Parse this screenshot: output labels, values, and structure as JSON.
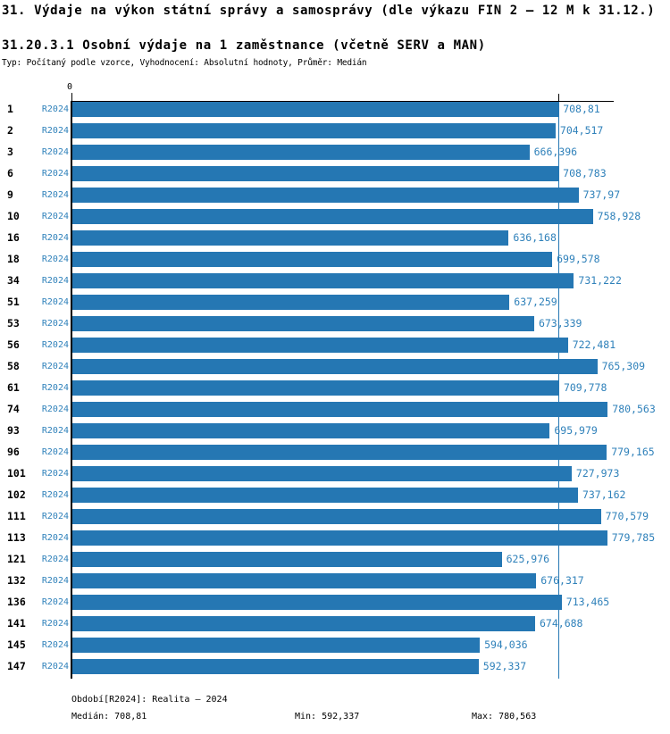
{
  "title": "31. Výdaje na výkon státní správy a samosprávy (dle výkazu FIN 2 – 12 M k 31.12.)",
  "subtitle": "31.20.3.1 Osobní výdaje na 1 zaměstnance (včetně SERV a MAN)",
  "meta_line": "Typ: Počítaný podle vzorce, Vyhodnocení: Absolutní hodnoty, Průměr: Medián",
  "colors": {
    "bar": "#2577b3",
    "blue_text": "#2f81ba",
    "axis": "#000000",
    "median_line": "#2577b3"
  },
  "chart_data": {
    "type": "bar",
    "orientation": "horizontal",
    "title": "31.20.3.1 Osobní výdaje na 1 zaměstnance (včetně SERV a MAN)",
    "series_label": "R2024",
    "axis_origin_label": "0",
    "xlim": [
      0,
      788
    ],
    "grid": false,
    "median": 708.81,
    "rows": [
      {
        "id": "1",
        "period": "R2024",
        "value": 708.81,
        "label": "708,81"
      },
      {
        "id": "2",
        "period": "R2024",
        "value": 704.517,
        "label": "704,517"
      },
      {
        "id": "3",
        "period": "R2024",
        "value": 666.396,
        "label": "666,396"
      },
      {
        "id": "6",
        "period": "R2024",
        "value": 708.783,
        "label": "708,783"
      },
      {
        "id": "9",
        "period": "R2024",
        "value": 737.97,
        "label": "737,97"
      },
      {
        "id": "10",
        "period": "R2024",
        "value": 758.928,
        "label": "758,928"
      },
      {
        "id": "16",
        "period": "R2024",
        "value": 636.168,
        "label": "636,168"
      },
      {
        "id": "18",
        "period": "R2024",
        "value": 699.578,
        "label": "699,578"
      },
      {
        "id": "34",
        "period": "R2024",
        "value": 731.222,
        "label": "731,222"
      },
      {
        "id": "51",
        "period": "R2024",
        "value": 637.259,
        "label": "637,259"
      },
      {
        "id": "53",
        "period": "R2024",
        "value": 673.339,
        "label": "673,339"
      },
      {
        "id": "56",
        "period": "R2024",
        "value": 722.481,
        "label": "722,481"
      },
      {
        "id": "58",
        "period": "R2024",
        "value": 765.309,
        "label": "765,309"
      },
      {
        "id": "61",
        "period": "R2024",
        "value": 709.778,
        "label": "709,778"
      },
      {
        "id": "74",
        "period": "R2024",
        "value": 780.563,
        "label": "780,563"
      },
      {
        "id": "93",
        "period": "R2024",
        "value": 695.979,
        "label": "695,979"
      },
      {
        "id": "96",
        "period": "R2024",
        "value": 779.165,
        "label": "779,165"
      },
      {
        "id": "101",
        "period": "R2024",
        "value": 727.973,
        "label": "727,973"
      },
      {
        "id": "102",
        "period": "R2024",
        "value": 737.162,
        "label": "737,162"
      },
      {
        "id": "111",
        "period": "R2024",
        "value": 770.579,
        "label": "770,579"
      },
      {
        "id": "113",
        "period": "R2024",
        "value": 779.785,
        "label": "779,785"
      },
      {
        "id": "121",
        "period": "R2024",
        "value": 625.976,
        "label": "625,976"
      },
      {
        "id": "132",
        "period": "R2024",
        "value": 676.317,
        "label": "676,317"
      },
      {
        "id": "136",
        "period": "R2024",
        "value": 713.465,
        "label": "713,465"
      },
      {
        "id": "141",
        "period": "R2024",
        "value": 674.688,
        "label": "674,688"
      },
      {
        "id": "145",
        "period": "R2024",
        "value": 594.036,
        "label": "594,036"
      },
      {
        "id": "147",
        "period": "R2024",
        "value": 592.337,
        "label": "592,337"
      }
    ]
  },
  "footer": {
    "period_line": "Období[R2024]: Realita – 2024",
    "median_label": "Medián: 708,81",
    "min_label": "Min: 592,337",
    "max_label": "Max: 780,563"
  }
}
